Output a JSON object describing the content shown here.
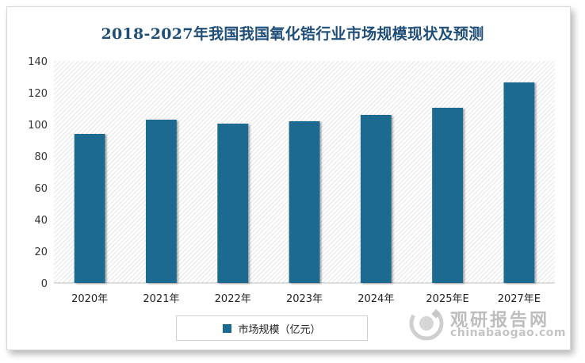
{
  "chart_data": {
    "type": "bar",
    "title": "2018-2027年我国我国氧化锆行业市场规模现状及预测",
    "categories": [
      "2020年",
      "2021年",
      "2022年",
      "2023年",
      "2024年",
      "2025年E",
      "2027年E"
    ],
    "series": [
      {
        "name": "市场规模（亿元）",
        "values": [
          94,
          103,
          100.5,
          102,
          106,
          110.5,
          126.5
        ]
      }
    ],
    "ylim": [
      0,
      140
    ],
    "yticks": [
      0,
      20,
      40,
      60,
      80,
      100,
      120,
      140
    ],
    "grid": false,
    "legend": "bottom",
    "colors": {
      "bar": "#1b6a8f",
      "title": "#1f4e79"
    }
  },
  "watermark": {
    "cn": "观研报告网",
    "en": "chinabaogao.com"
  }
}
